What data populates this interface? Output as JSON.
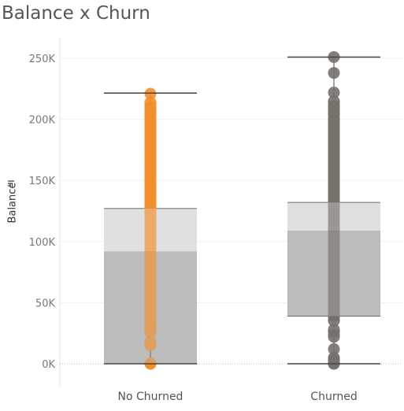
{
  "title": "Balance x Churn",
  "chart_data": {
    "type": "boxplot",
    "ylabel": "Balance",
    "ylim": [
      0,
      260000
    ],
    "y_ticks": [
      0,
      50000,
      100000,
      150000,
      200000,
      250000
    ],
    "y_tick_labels": [
      "0K",
      "50K",
      "100K",
      "150K",
      "200K",
      "250K"
    ],
    "grid": true,
    "categories": [
      "No Churned",
      "Churned"
    ],
    "boxes": [
      {
        "category": "No Churned",
        "color": "#f28e2b",
        "whisker_low": 0,
        "q1": 0,
        "median": 92000,
        "q3": 127000,
        "whisker_high": 221500,
        "points": [
          0,
          0,
          15000,
          18000,
          25000,
          28000,
          30000,
          35000,
          40000,
          45000,
          50000,
          55000,
          60000,
          65000,
          70000,
          75000,
          80000,
          85000,
          90000,
          95000,
          100000,
          105000,
          110000,
          115000,
          120000,
          125000,
          130000,
          135000,
          140000,
          145000,
          150000,
          155000,
          160000,
          165000,
          170000,
          175000,
          180000,
          185000,
          190000,
          195000,
          200000,
          205000,
          210000,
          214000,
          221000
        ]
      },
      {
        "category": "Churned",
        "color": "#76706a",
        "whisker_low": 0,
        "q1": 39000,
        "median": 109000,
        "q3": 132000,
        "whisker_high": 251000,
        "points": [
          0,
          0,
          3000,
          5000,
          12000,
          22000,
          28000,
          35000,
          40000,
          45000,
          50000,
          55000,
          60000,
          65000,
          70000,
          75000,
          80000,
          85000,
          90000,
          95000,
          100000,
          105000,
          110000,
          115000,
          120000,
          125000,
          130000,
          135000,
          140000,
          145000,
          150000,
          155000,
          160000,
          165000,
          170000,
          175000,
          180000,
          185000,
          190000,
          195000,
          200000,
          205000,
          210000,
          215000,
          222000,
          238000,
          251000
        ]
      }
    ]
  }
}
